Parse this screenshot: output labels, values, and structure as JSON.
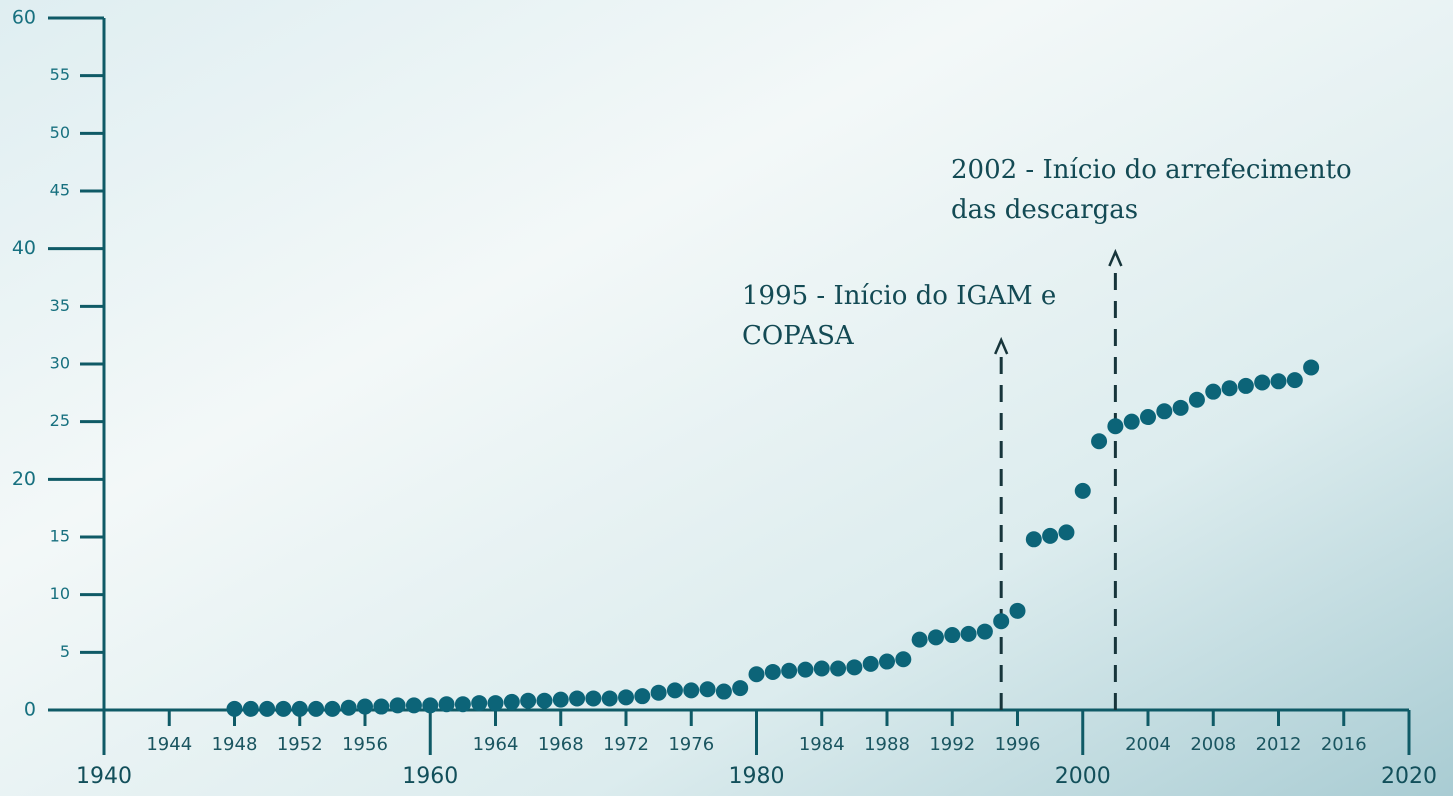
{
  "chart_data": {
    "type": "scatter",
    "x": [
      1948,
      1949,
      1950,
      1951,
      1952,
      1953,
      1954,
      1955,
      1956,
      1957,
      1958,
      1959,
      1960,
      1961,
      1962,
      1963,
      1964,
      1965,
      1966,
      1967,
      1968,
      1969,
      1970,
      1971,
      1972,
      1973,
      1974,
      1975,
      1976,
      1977,
      1978,
      1979,
      1980,
      1981,
      1982,
      1983,
      1984,
      1985,
      1986,
      1987,
      1988,
      1989,
      1990,
      1991,
      1992,
      1993,
      1994,
      1995,
      1996,
      1997,
      1998,
      1999,
      2000,
      2001,
      2002,
      2003,
      2004,
      2005,
      2006,
      2007,
      2008,
      2009,
      2010,
      2011,
      2012,
      2013,
      2014
    ],
    "values": [
      0.1,
      0.1,
      0.1,
      0.1,
      0.1,
      0.1,
      0.1,
      0.2,
      0.3,
      0.3,
      0.4,
      0.4,
      0.4,
      0.5,
      0.5,
      0.6,
      0.6,
      0.7,
      0.8,
      0.8,
      0.9,
      1.0,
      1.0,
      1.0,
      1.1,
      1.2,
      1.5,
      1.7,
      1.7,
      1.8,
      1.6,
      1.9,
      3.1,
      3.3,
      3.4,
      3.5,
      3.6,
      3.6,
      3.7,
      4.0,
      4.2,
      4.4,
      6.1,
      6.3,
      6.5,
      6.6,
      6.8,
      7.7,
      8.6,
      14.8,
      15.1,
      15.4,
      19.0,
      23.3,
      24.6,
      25.0,
      25.4,
      25.9,
      26.2,
      26.9,
      27.6,
      27.9,
      28.1,
      28.4,
      28.5,
      28.6,
      29.7
    ],
    "color": "#0c6478",
    "xlim": [
      1940,
      2020
    ],
    "xticks": [
      1940,
      1944,
      1948,
      1952,
      1956,
      1960,
      1964,
      1968,
      1972,
      1976,
      1980,
      1984,
      1988,
      1992,
      1996,
      2000,
      2004,
      2008,
      2012,
      2016,
      2020
    ],
    "ylim": [
      0,
      60
    ],
    "yticks": [
      0,
      5,
      10,
      15,
      20,
      25,
      30,
      35,
      40,
      45,
      50,
      55,
      60
    ],
    "annotations": [
      {
        "x": 1995,
        "lines": [
          "1995 - Início do IGAM e",
          "COPASA"
        ]
      },
      {
        "x": 2002,
        "lines": [
          "2002 - Início do arrefecimento",
          "das descargas"
        ]
      }
    ]
  }
}
